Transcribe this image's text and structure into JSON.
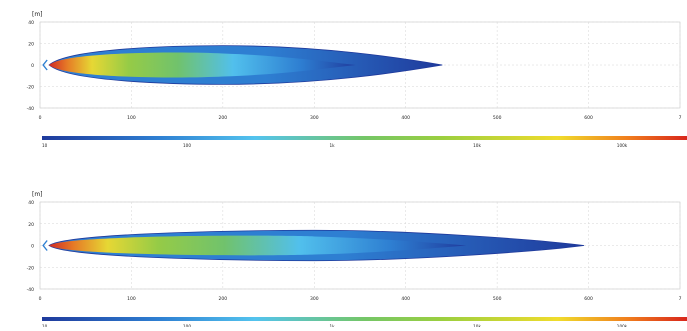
{
  "chart_data": [
    {
      "type": "heatmap",
      "title": "",
      "xlabel": "",
      "ylabel": "[m]",
      "xlim": [
        0,
        700
      ],
      "ylim": [
        -40,
        40
      ],
      "x_ticks": [
        "0",
        "100",
        "200",
        "300",
        "400",
        "500",
        "600",
        "7"
      ],
      "y_ticks": [
        "40",
        "20",
        "0",
        "-20",
        "-40"
      ],
      "beam": {
        "length": 440,
        "max_half_width": 18,
        "peak_at_x": 200
      },
      "colorbar": {
        "ticks": [
          "10",
          "100",
          "1k",
          "10k",
          "100k"
        ]
      }
    },
    {
      "type": "heatmap",
      "title": "",
      "xlabel": "",
      "ylabel": "[m]",
      "xlim": [
        0,
        700
      ],
      "ylim": [
        -40,
        40
      ],
      "x_ticks": [
        "0",
        "100",
        "200",
        "300",
        "400",
        "500",
        "600",
        "7"
      ],
      "y_ticks": [
        "40",
        "20",
        "0",
        "-20",
        "-40"
      ],
      "beam": {
        "length": 595,
        "max_half_width": 14,
        "peak_at_x": 300
      },
      "colorbar": {
        "ticks": [
          "10",
          "100",
          "1k",
          "10k",
          "100k"
        ]
      }
    }
  ],
  "colors": {
    "scale": [
      "#1f3a9c",
      "#2e7fd2",
      "#53c3ee",
      "#74c667",
      "#9bcf3f",
      "#f0dc2c",
      "#f07c1d",
      "#d8261c"
    ]
  }
}
